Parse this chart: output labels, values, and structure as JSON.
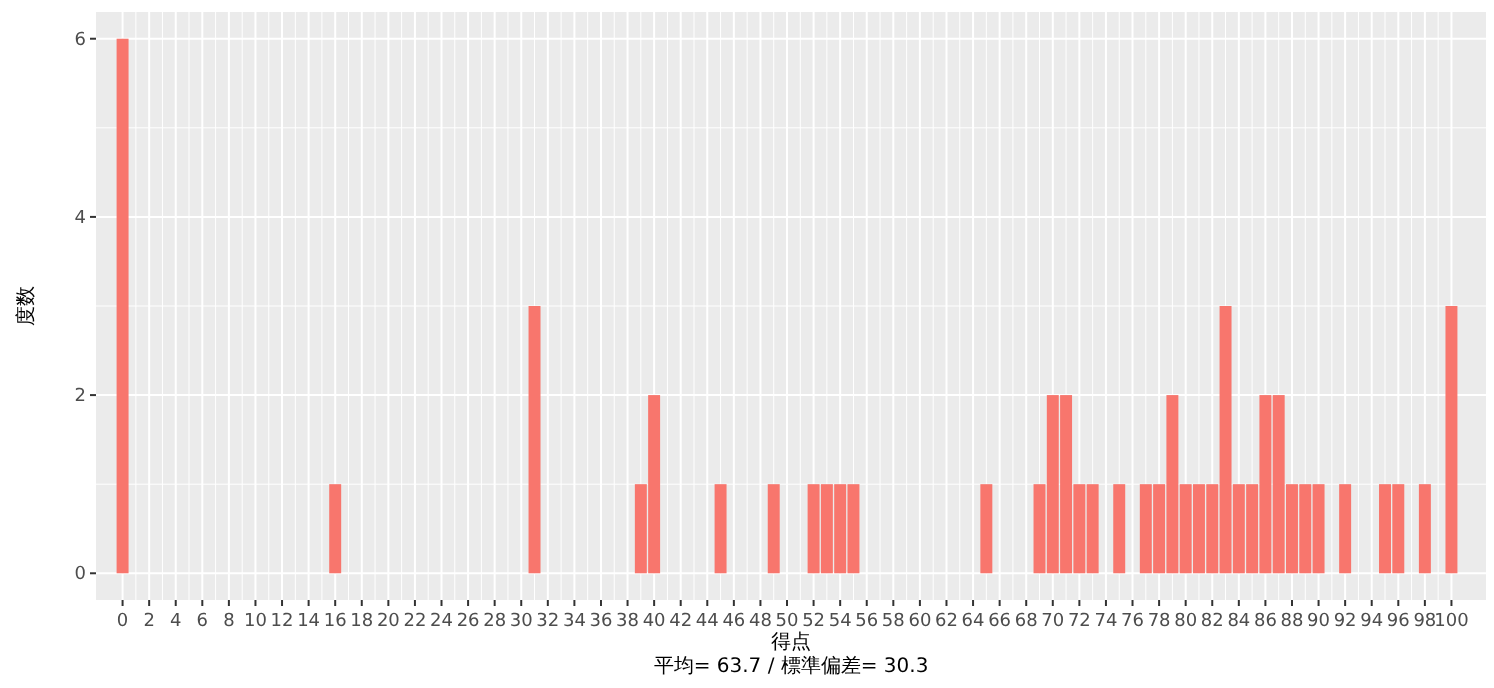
{
  "chart_data": {
    "type": "bar",
    "xlabel": "得点",
    "ylabel": "度数",
    "annotations": [
      "平均= 63.7 / 標準偏差= 30.3"
    ],
    "x": [
      0,
      16,
      31,
      39,
      40,
      45,
      49,
      52,
      53,
      54,
      55,
      65,
      69,
      70,
      71,
      72,
      73,
      75,
      77,
      78,
      79,
      80,
      81,
      82,
      83,
      84,
      85,
      86,
      87,
      88,
      89,
      90,
      92,
      95,
      96,
      98,
      100
    ],
    "values": [
      6,
      1,
      3,
      1,
      2,
      1,
      1,
      1,
      1,
      1,
      1,
      1,
      1,
      2,
      2,
      1,
      1,
      1,
      1,
      1,
      2,
      1,
      1,
      1,
      3,
      1,
      1,
      2,
      2,
      1,
      1,
      1,
      1,
      1,
      1,
      1,
      3
    ],
    "color": "#f8766d",
    "xlim": [
      -2,
      102.6
    ],
    "ylim": [
      -0.3,
      6.3
    ],
    "xticks": [
      0,
      2,
      4,
      6,
      8,
      10,
      12,
      14,
      16,
      18,
      20,
      22,
      24,
      26,
      28,
      30,
      32,
      34,
      36,
      38,
      40,
      42,
      44,
      46,
      48,
      50,
      52,
      54,
      56,
      58,
      60,
      62,
      64,
      66,
      68,
      70,
      72,
      74,
      76,
      78,
      80,
      82,
      84,
      86,
      88,
      90,
      92,
      94,
      96,
      98,
      100
    ],
    "yticks": [
      0,
      2,
      4,
      6
    ],
    "grid": true
  }
}
